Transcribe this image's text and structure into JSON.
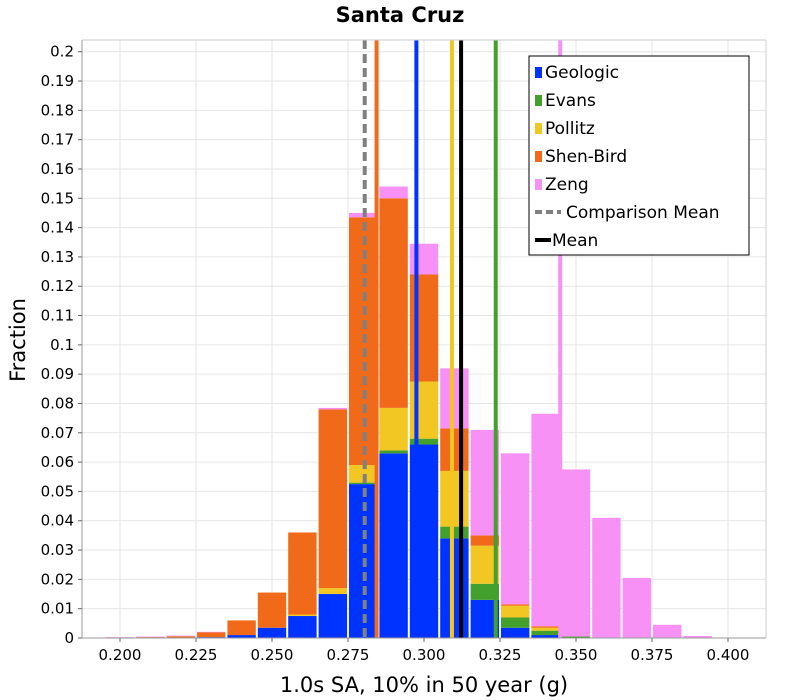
{
  "chart_data": {
    "type": "bar",
    "stacked": true,
    "title": "Santa Cruz",
    "xlabel": "1.0s SA, 10% in 50 year (g)",
    "ylabel": "Fraction",
    "xlim": [
      0.1875,
      0.4125
    ],
    "ylim": [
      0,
      0.204
    ],
    "bin_width": 0.01,
    "x_ticks": [
      0.2,
      0.225,
      0.25,
      0.275,
      0.3,
      0.325,
      0.35,
      0.375,
      0.4
    ],
    "x_tick_labels": [
      "0.200",
      "0.225",
      "0.250",
      "0.275",
      "0.300",
      "0.325",
      "0.350",
      "0.375",
      "0.400"
    ],
    "y_ticks": [
      0,
      0.01,
      0.02,
      0.03,
      0.04,
      0.05,
      0.06,
      0.07,
      0.08,
      0.09,
      0.1,
      0.11,
      0.12,
      0.13,
      0.14,
      0.15,
      0.16,
      0.17,
      0.18,
      0.19,
      0.2
    ],
    "y_tick_labels": [
      "0",
      "0.01",
      "0.02",
      "0.03",
      "0.04",
      "0.05",
      "0.06",
      "0.07",
      "0.08",
      "0.09",
      "0.1",
      "0.11",
      "0.12",
      "0.13",
      "0.14",
      "0.15",
      "0.16",
      "0.17",
      "0.18",
      "0.19",
      "0.2"
    ],
    "grid": true,
    "legend_position": "top-right",
    "x": [
      0.2,
      0.21,
      0.22,
      0.23,
      0.24,
      0.25,
      0.26,
      0.27,
      0.28,
      0.29,
      0.3,
      0.31,
      0.32,
      0.33,
      0.34,
      0.35,
      0.36,
      0.37,
      0.38,
      0.39
    ],
    "series": [
      {
        "name": "Geologic",
        "color": "#0033ff",
        "values": [
          0,
          0,
          0,
          0.0003,
          0.001,
          0.0035,
          0.0075,
          0.015,
          0.0525,
          0.063,
          0.066,
          0.034,
          0.013,
          0.0035,
          0.001,
          0,
          0,
          0,
          0,
          0
        ]
      },
      {
        "name": "Evans",
        "color": "#44a02c",
        "values": [
          0,
          0,
          0,
          0,
          0,
          0,
          0,
          0,
          0.0005,
          0.001,
          0.002,
          0.004,
          0.0055,
          0.0035,
          0.0015,
          0.0005,
          0,
          0,
          0,
          0
        ]
      },
      {
        "name": "Pollitz",
        "color": "#f2c623",
        "values": [
          0,
          0,
          0,
          0,
          0,
          0,
          0.0005,
          0.002,
          0.006,
          0.0145,
          0.0195,
          0.019,
          0.013,
          0.004,
          0.001,
          0,
          0,
          0,
          0,
          0
        ]
      },
      {
        "name": "Shen-Bird",
        "color": "#f06a1a",
        "values": [
          0,
          0.0003,
          0.0006,
          0.0017,
          0.005,
          0.012,
          0.028,
          0.061,
          0.0845,
          0.0715,
          0.0365,
          0.0145,
          0.0035,
          0.0005,
          0.0005,
          0,
          0,
          0,
          0,
          0
        ]
      },
      {
        "name": "Zeng",
        "color": "#f891f5",
        "values": [
          0.0003,
          0.0002,
          0.0002,
          0.0001,
          0,
          0,
          0,
          0.0005,
          0.0015,
          0.004,
          0.0105,
          0.0205,
          0.036,
          0.0515,
          0.0725,
          0.057,
          0.041,
          0.0205,
          0.0045,
          0.0007
        ]
      }
    ],
    "vertical_lines": [
      {
        "name": "Geologic mean",
        "x": 0.2975,
        "color": "#0033ff",
        "style": "solid"
      },
      {
        "name": "Evans mean",
        "x": 0.3236,
        "color": "#44a02c",
        "style": "solid"
      },
      {
        "name": "Pollitz mean",
        "x": 0.3092,
        "color": "#f2c623",
        "style": "solid"
      },
      {
        "name": "Shen-Bird mean",
        "x": 0.2844,
        "color": "#f06a1a",
        "style": "solid"
      },
      {
        "name": "Zeng mean",
        "x": 0.3448,
        "color": "#f891f5",
        "style": "solid"
      },
      {
        "name": "Comparison Mean",
        "x": 0.2805,
        "color": "#808080",
        "style": "dashed"
      },
      {
        "name": "Mean",
        "x": 0.3122,
        "color": "#000000",
        "style": "solid"
      }
    ],
    "legend": [
      {
        "label": "Geologic",
        "kind": "box",
        "color": "#0033ff"
      },
      {
        "label": "Evans",
        "kind": "box",
        "color": "#44a02c"
      },
      {
        "label": "Pollitz",
        "kind": "box",
        "color": "#f2c623"
      },
      {
        "label": "Shen-Bird",
        "kind": "box",
        "color": "#f06a1a"
      },
      {
        "label": "Zeng",
        "kind": "box",
        "color": "#f891f5"
      },
      {
        "label": "Comparison Mean",
        "kind": "dashed-line",
        "color": "#808080"
      },
      {
        "label": "Mean",
        "kind": "line",
        "color": "#000000"
      }
    ]
  }
}
